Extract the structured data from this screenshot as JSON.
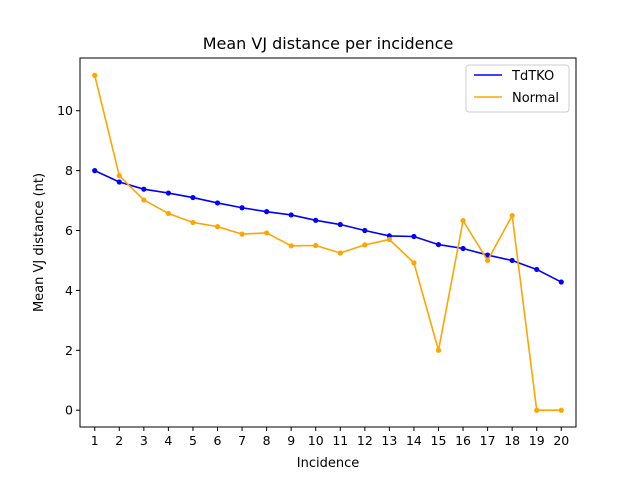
{
  "chart_data": {
    "type": "line",
    "title": "Mean VJ distance per incidence",
    "xlabel": "Incidence",
    "ylabel": "Mean VJ distance (nt)",
    "x": [
      1,
      2,
      3,
      4,
      5,
      6,
      7,
      8,
      9,
      10,
      11,
      12,
      13,
      14,
      15,
      16,
      17,
      18,
      19,
      20
    ],
    "xlim": [
      0.4,
      20.6
    ],
    "ylim": [
      -0.56,
      11.76
    ],
    "yticks": [
      0,
      2,
      4,
      6,
      8,
      10
    ],
    "legend_position": "top-right",
    "series": [
      {
        "name": "TdTKO",
        "color": "#0000ff",
        "values": [
          8.0,
          7.62,
          7.38,
          7.25,
          7.1,
          6.92,
          6.76,
          6.63,
          6.52,
          6.34,
          6.2,
          6.0,
          5.82,
          5.8,
          5.53,
          5.4,
          5.18,
          5.0,
          4.7,
          4.28
        ]
      },
      {
        "name": "Normal",
        "color": "#ffa500",
        "values": [
          11.18,
          7.83,
          7.02,
          6.57,
          6.27,
          6.13,
          5.88,
          5.92,
          5.49,
          5.5,
          5.25,
          5.52,
          5.7,
          4.92,
          2.0,
          6.33,
          5.0,
          6.5,
          0.0,
          0.0
        ]
      }
    ]
  }
}
